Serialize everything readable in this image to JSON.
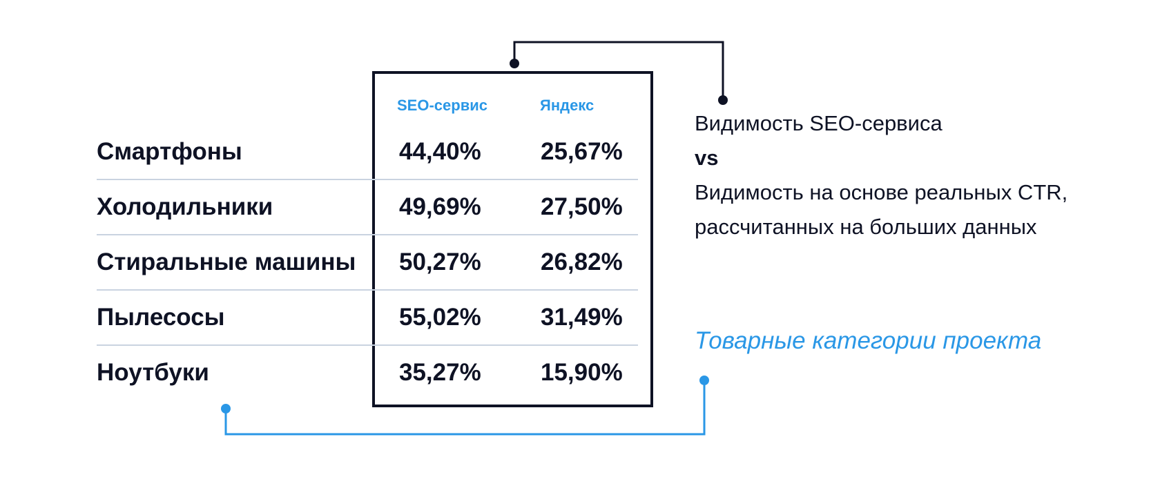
{
  "chart_data": {
    "type": "table",
    "columns": [
      "SEO-сервис",
      "Яндекс"
    ],
    "rows": [
      {
        "category": "Смартфоны",
        "values": [
          "44,40%",
          "25,67%"
        ]
      },
      {
        "category": "Холодильники",
        "values": [
          "49,69%",
          "27,50%"
        ]
      },
      {
        "category": "Стиральные машины",
        "values": [
          "50,27%",
          "26,82%"
        ]
      },
      {
        "category": "Пылесосы",
        "values": [
          "55,02%",
          "31,49%"
        ]
      },
      {
        "category": "Ноутбуки",
        "values": [
          "35,27%",
          "15,90%"
        ]
      }
    ]
  },
  "annotations": {
    "comparison": {
      "line1": "Видимость SEO-сервиса",
      "vs": "vs",
      "line2": "Видимость на основе реальных CTR,",
      "line3": "рассчитанных на больших данных"
    },
    "categories_caption": "Товарные категории проекта"
  },
  "colors": {
    "dark": "#0e1224",
    "accent": "#2a97e6",
    "divider": "#c9d3e0"
  }
}
